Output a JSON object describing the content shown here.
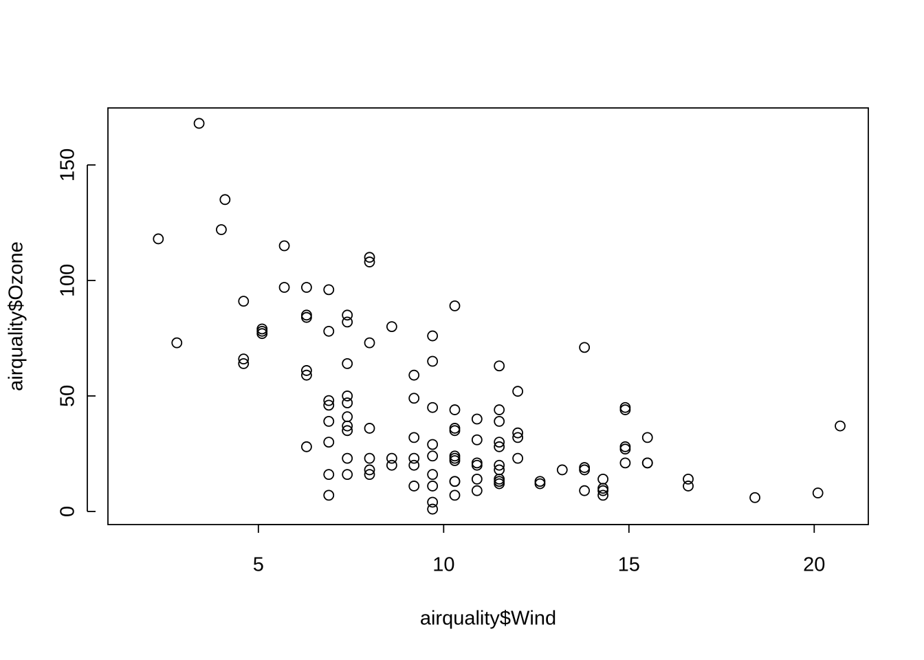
{
  "chart_data": {
    "type": "scatter",
    "xlabel": "airquality$Wind",
    "ylabel": "airquality$Ozone",
    "x": [
      7.4,
      8.0,
      12.6,
      11.5,
      14.9,
      8.6,
      13.8,
      20.1,
      6.9,
      9.7,
      9.2,
      10.9,
      13.2,
      11.5,
      12.0,
      18.4,
      11.5,
      9.7,
      9.7,
      16.6,
      9.7,
      12.0,
      12.0,
      14.9,
      5.7,
      7.4,
      9.7,
      13.8,
      11.5,
      8.0,
      14.9,
      20.7,
      9.2,
      11.5,
      10.3,
      4.1,
      9.2,
      9.2,
      4.6,
      10.9,
      5.1,
      6.3,
      5.7,
      7.4,
      14.3,
      14.9,
      14.3,
      6.9,
      10.3,
      6.3,
      5.1,
      11.5,
      6.9,
      8.6,
      8.0,
      8.6,
      12.0,
      7.4,
      7.4,
      7.4,
      9.2,
      6.9,
      13.8,
      7.4,
      6.9,
      7.4,
      4.6,
      4.0,
      10.3,
      8.0,
      11.5,
      11.5,
      9.7,
      10.3,
      6.3,
      7.4,
      10.9,
      10.3,
      15.5,
      14.3,
      9.7,
      3.4,
      8.0,
      9.7,
      2.3,
      6.3,
      6.3,
      6.9,
      5.1,
      2.8,
      4.6,
      7.4,
      15.5,
      10.9,
      10.3,
      10.9,
      9.7,
      14.9,
      15.5,
      6.3,
      10.9,
      11.5,
      6.9,
      13.8,
      10.3,
      10.3,
      8.0,
      12.6,
      9.2,
      10.3,
      10.3,
      16.6,
      6.9,
      14.3,
      8.0,
      11.5
    ],
    "values": [
      41,
      36,
      12,
      18,
      28,
      23,
      19,
      8,
      7,
      16,
      11,
      14,
      18,
      14,
      34,
      6,
      30,
      11,
      1,
      11,
      4,
      32,
      23,
      45,
      115,
      37,
      29,
      71,
      39,
      23,
      21,
      37,
      20,
      12,
      13,
      135,
      49,
      32,
      64,
      40,
      77,
      97,
      97,
      85,
      10,
      27,
      7,
      48,
      35,
      61,
      79,
      63,
      16,
      80,
      108,
      20,
      52,
      82,
      50,
      64,
      59,
      39,
      9,
      16,
      78,
      35,
      66,
      122,
      89,
      110,
      44,
      28,
      65,
      22,
      59,
      23,
      31,
      44,
      21,
      9,
      45,
      168,
      73,
      76,
      118,
      84,
      85,
      96,
      78,
      73,
      91,
      47,
      32,
      20,
      23,
      21,
      24,
      44,
      21,
      28,
      9,
      13,
      46,
      18,
      13,
      24,
      16,
      13,
      23,
      36,
      7,
      14,
      30,
      14,
      18,
      20
    ],
    "xlim": [
      0.94,
      21.46
    ],
    "ylim": [
      -5.68,
      174.68
    ],
    "xticks": [
      5,
      10,
      15,
      20
    ],
    "yticks": [
      0,
      50,
      100,
      150
    ]
  }
}
